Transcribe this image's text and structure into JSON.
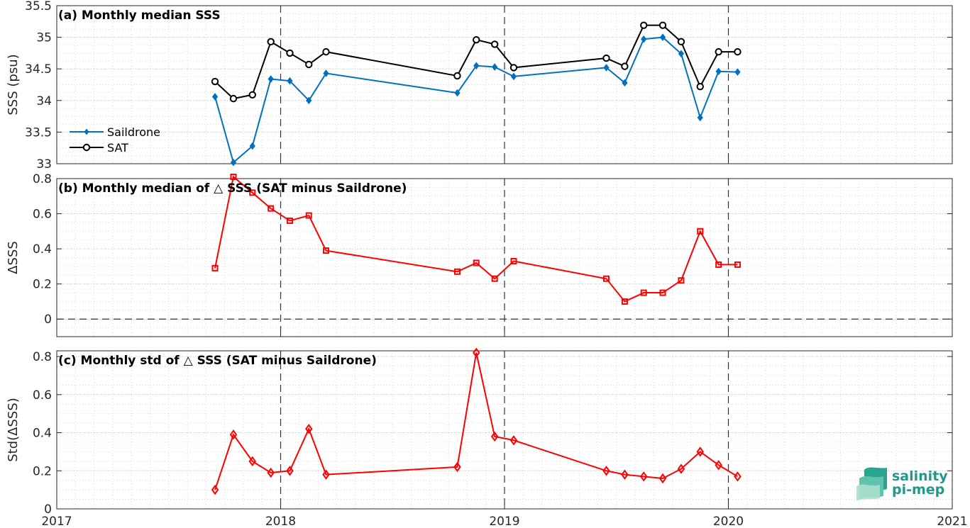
{
  "chart_data": [
    {
      "type": "line",
      "title": "(a) Monthly median SSS",
      "ylabel": "SSS (psu)",
      "ylim": [
        33,
        35.5
      ],
      "yticks": [
        "33",
        "33.5",
        "34",
        "34.5",
        "35",
        "35.5"
      ],
      "xlim": [
        "2017-01-01",
        "2021-01-01"
      ],
      "xticks": [
        "2017",
        "2018",
        "2019",
        "2020",
        "2021"
      ],
      "grid": true,
      "legend": "left",
      "series": [
        {
          "name": "Saildrone",
          "color": "#0072bd",
          "marker": "diamond-filled",
          "x": [
            "2017-09-16",
            "2017-10-16",
            "2017-11-16",
            "2017-12-16",
            "2018-01-16",
            "2018-02-16",
            "2018-03-16",
            "2018-10-16",
            "2018-11-16",
            "2018-12-16",
            "2019-01-16",
            "2019-06-16",
            "2019-07-16",
            "2019-08-16",
            "2019-09-16",
            "2019-10-16",
            "2019-11-16",
            "2019-12-16",
            "2020-01-16"
          ],
          "values": [
            34.06,
            33.02,
            33.28,
            34.34,
            34.31,
            34.0,
            34.43,
            34.12,
            34.55,
            34.53,
            34.38,
            34.52,
            34.28,
            34.97,
            35.0,
            34.74,
            33.73,
            34.46,
            34.45
          ]
        },
        {
          "name": "SAT",
          "color": "#000000",
          "marker": "circle-open",
          "x": [
            "2017-09-16",
            "2017-10-16",
            "2017-11-16",
            "2017-12-16",
            "2018-01-16",
            "2018-02-16",
            "2018-03-16",
            "2018-10-16",
            "2018-11-16",
            "2018-12-16",
            "2019-01-16",
            "2019-06-16",
            "2019-07-16",
            "2019-08-16",
            "2019-09-16",
            "2019-10-16",
            "2019-11-16",
            "2019-12-16",
            "2020-01-16"
          ],
          "values": [
            34.3,
            34.03,
            34.09,
            34.93,
            34.75,
            34.57,
            34.77,
            34.39,
            34.96,
            34.89,
            34.52,
            34.67,
            34.54,
            35.19,
            35.19,
            34.93,
            34.22,
            34.77,
            34.77
          ]
        }
      ]
    },
    {
      "type": "line",
      "title": "(b) Monthly median of △ SSS (SAT minus Saildrone)",
      "ylabel": "ΔSSS",
      "ylim": [
        -0.1,
        0.8
      ],
      "yticks": [
        "0",
        "0.2",
        "0.4",
        "0.6",
        "0.8"
      ],
      "xlim": [
        "2017-01-01",
        "2021-01-01"
      ],
      "grid": true,
      "zero_line": true,
      "series": [
        {
          "color": "#ff0000",
          "marker": "square-open",
          "x": [
            "2017-09-16",
            "2017-10-16",
            "2017-11-16",
            "2017-12-16",
            "2018-01-16",
            "2018-02-16",
            "2018-03-16",
            "2018-10-16",
            "2018-11-16",
            "2018-12-16",
            "2019-01-16",
            "2019-06-16",
            "2019-07-16",
            "2019-08-16",
            "2019-09-16",
            "2019-10-16",
            "2019-11-16",
            "2019-12-16",
            "2020-01-16"
          ],
          "values": [
            0.29,
            0.81,
            0.72,
            0.63,
            0.56,
            0.59,
            0.39,
            0.27,
            0.32,
            0.23,
            0.33,
            0.23,
            0.1,
            0.15,
            0.15,
            0.22,
            0.5,
            0.31,
            0.31
          ]
        }
      ]
    },
    {
      "type": "line",
      "title": "(c) Monthly std of △ SSS (SAT minus Saildrone)",
      "ylabel": "Std(ΔSSS)",
      "ylim": [
        0,
        0.83
      ],
      "yticks": [
        "0",
        "0.2",
        "0.4",
        "0.6",
        "0.8"
      ],
      "xlim": [
        "2017-01-01",
        "2021-01-01"
      ],
      "xticks": [
        "2017",
        "2018",
        "2019",
        "2020",
        "2021"
      ],
      "grid": true,
      "series": [
        {
          "color": "#ff0000",
          "marker": "diamond-open",
          "x": [
            "2017-09-16",
            "2017-10-16",
            "2017-11-16",
            "2017-12-16",
            "2018-01-16",
            "2018-02-16",
            "2018-03-16",
            "2018-10-16",
            "2018-11-16",
            "2018-12-16",
            "2019-01-16",
            "2019-06-16",
            "2019-07-16",
            "2019-08-16",
            "2019-09-16",
            "2019-10-16",
            "2019-11-16",
            "2019-12-16",
            "2020-01-16"
          ],
          "values": [
            0.1,
            0.39,
            0.25,
            0.19,
            0.2,
            0.42,
            0.18,
            0.22,
            0.82,
            0.38,
            0.36,
            0.2,
            0.18,
            0.17,
            0.16,
            0.21,
            0.3,
            0.23,
            0.17
          ]
        }
      ]
    }
  ],
  "vertical_markers": [
    "2018-01-01",
    "2019-01-01",
    "2020-01-01"
  ],
  "logo": {
    "line1": "salinity",
    "line2": "pi-mep",
    "color": "#1f9a88"
  }
}
